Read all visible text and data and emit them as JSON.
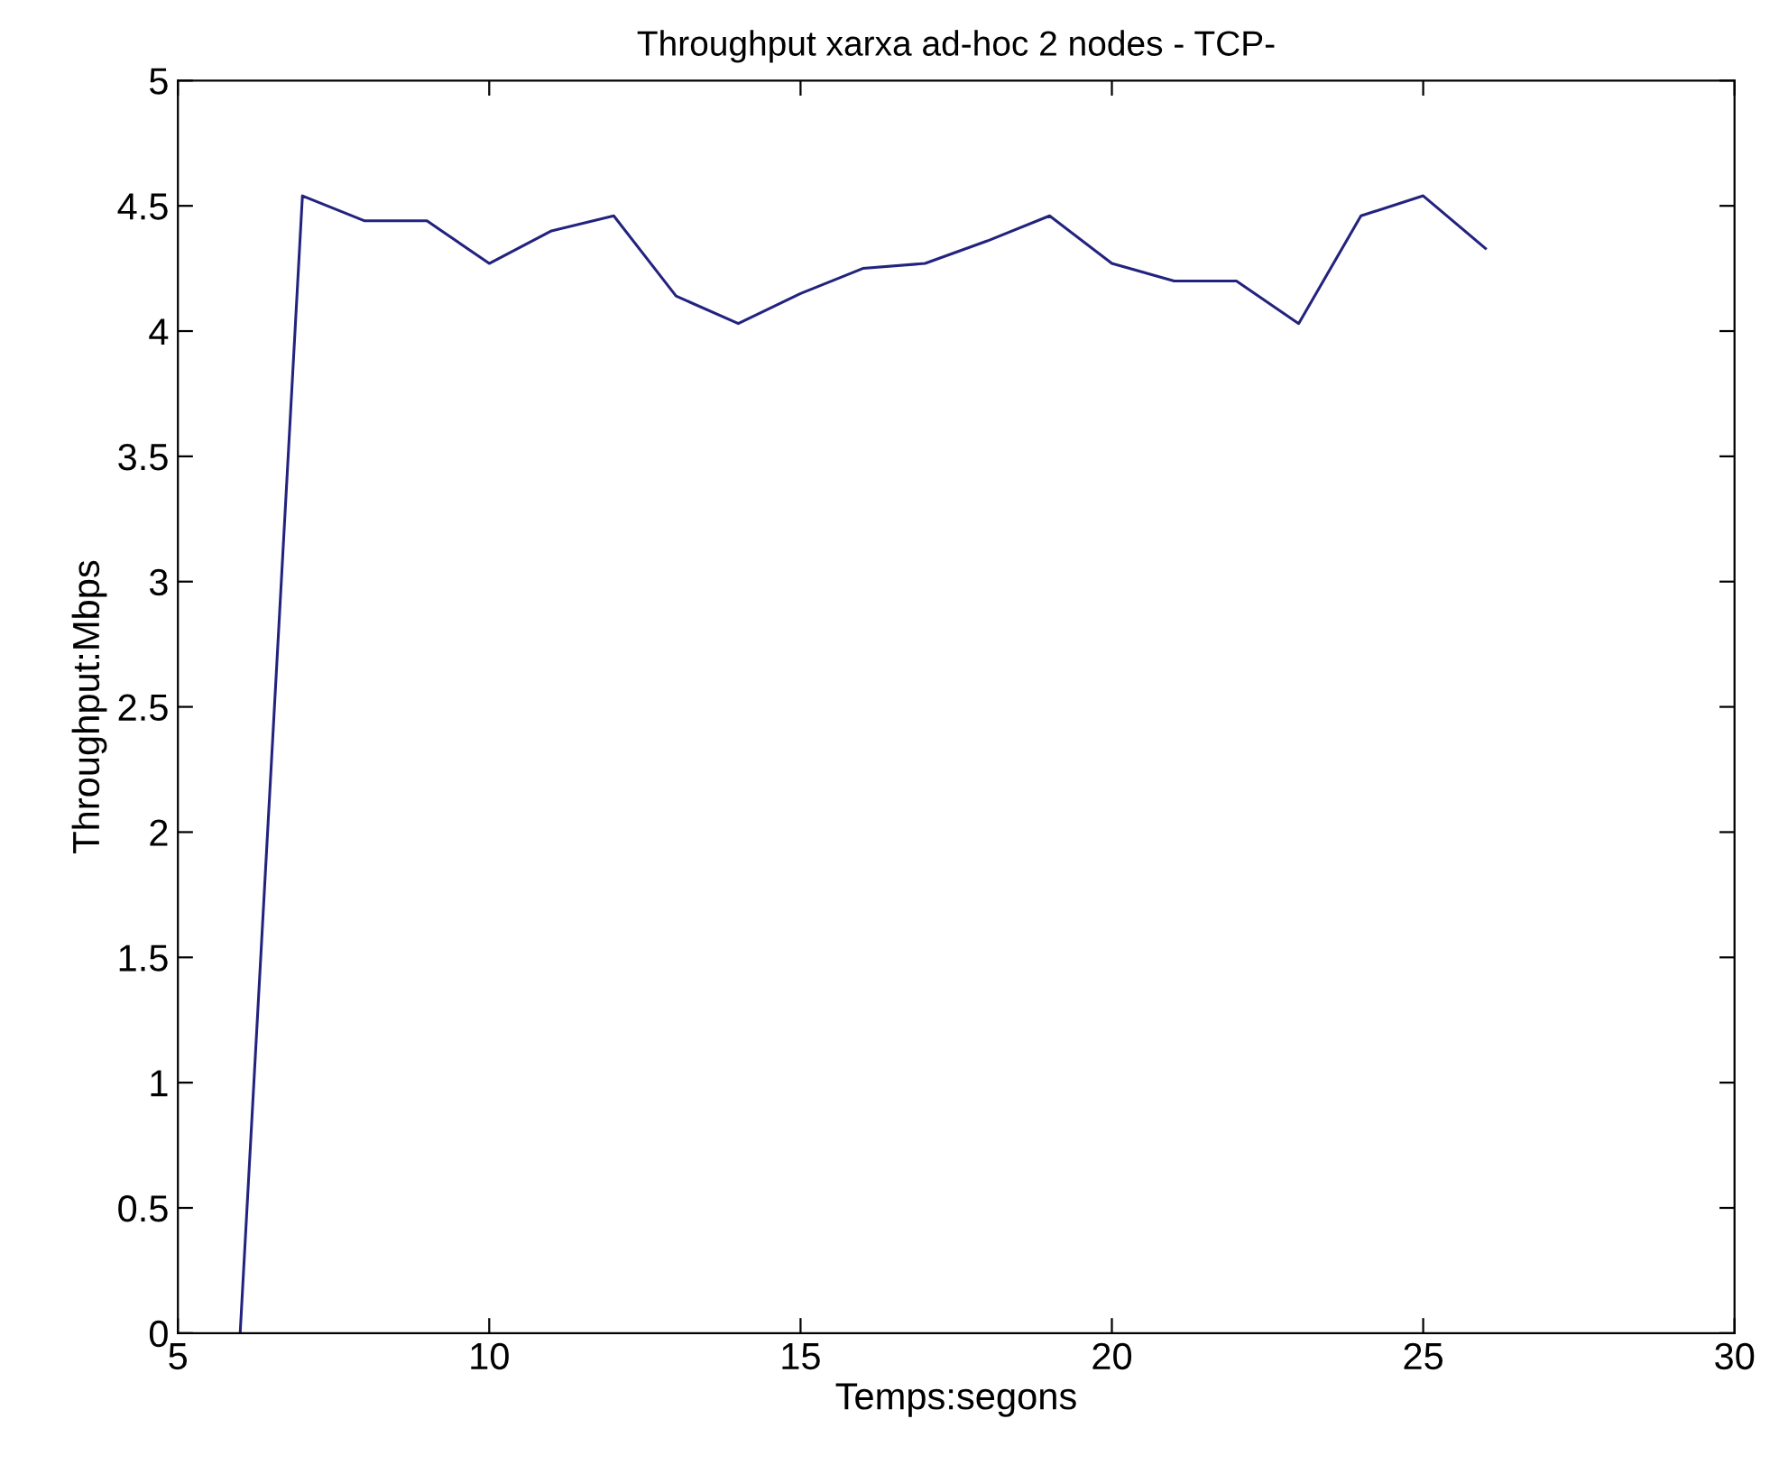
{
  "chart_data": {
    "type": "line",
    "title": "Throughput xarxa ad-hoc 2 nodes - TCP-",
    "xlabel": "Temps:segons",
    "ylabel": "Throughput:Mbps",
    "x": [
      6,
      7,
      8,
      9,
      10,
      11,
      12,
      13,
      14,
      15,
      16,
      17,
      18,
      19,
      20,
      21,
      22,
      23,
      24,
      25,
      26
    ],
    "series": [
      {
        "color": "#23237f",
        "values": [
          0,
          4.54,
          4.44,
          4.44,
          4.27,
          4.4,
          4.46,
          4.14,
          4.03,
          4.15,
          4.25,
          4.27,
          4.36,
          4.46,
          4.27,
          4.2,
          4.2,
          4.03,
          4.46,
          4.54,
          4.33
        ]
      }
    ],
    "xlim": [
      5,
      30
    ],
    "xticks": [
      5,
      10,
      15,
      20,
      25,
      30
    ],
    "ylim": [
      0,
      5
    ],
    "yticks": [
      0,
      0.5,
      1,
      1.5,
      2,
      2.5,
      3,
      3.5,
      4,
      4.5,
      5
    ],
    "grid": false,
    "marker": "none",
    "line_style": "solid"
  }
}
